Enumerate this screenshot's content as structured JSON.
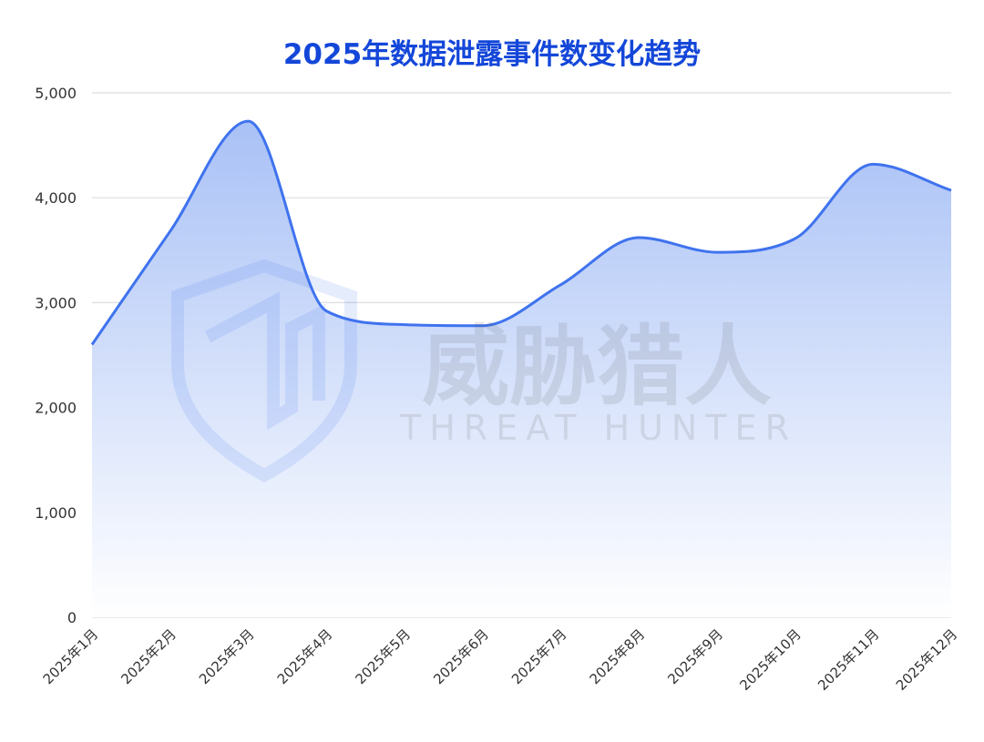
{
  "chart_data": {
    "type": "area",
    "title": "2025年数据泄露事件数变化趋势",
    "categories": [
      "2025年1月",
      "2025年2月",
      "2025年3月",
      "2025年4月",
      "2025年5月",
      "2025年6月",
      "2025年7月",
      "2025年8月",
      "2025年9月",
      "2025年10月",
      "2025年11月",
      "2025年12月"
    ],
    "values": [
      2600,
      3680,
      4730,
      2920,
      2790,
      2780,
      3170,
      3620,
      3480,
      3610,
      4320,
      4070
    ],
    "ylim": [
      0,
      5000
    ],
    "yticks": [
      0,
      1000,
      2000,
      3000,
      4000,
      5000
    ],
    "ytick_labels": [
      "0",
      "1,000",
      "2,000",
      "3,000",
      "4,000",
      "5,000"
    ],
    "grid": true,
    "xlabel": "",
    "ylabel": "",
    "colors": {
      "line": "#3f73ee",
      "fill_top": "#a9c1f6",
      "fill_bottom": "#ffffff",
      "title": "#1447d9",
      "grid": "#dcdde2"
    },
    "watermark": {
      "text_cn": "威胁猎人",
      "text_en": "THREAT HUNTER"
    }
  }
}
